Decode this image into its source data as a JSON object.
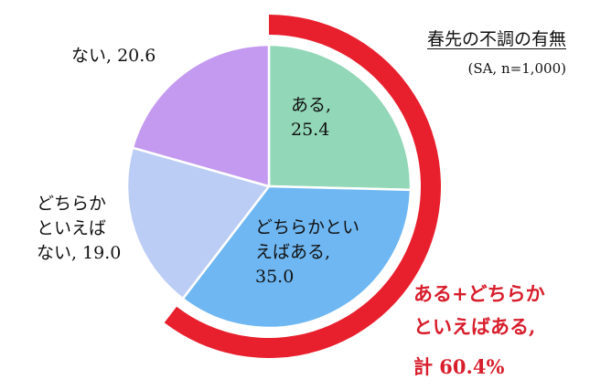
{
  "chart_data": {
    "type": "pie",
    "title": "春先の不調の有無",
    "subtitle": "(SA, n=1,000)",
    "slices": [
      {
        "label": "ある",
        "value": 25.4,
        "color": "#92d7b7"
      },
      {
        "label": "どちらかといえばある",
        "value": 35.0,
        "color": "#6fb7f2"
      },
      {
        "label": "どちらかといえばない",
        "value": 19.0,
        "color": "#bccdf5"
      },
      {
        "label": "ない",
        "value": 20.6,
        "color": "#c49af0"
      }
    ],
    "highlight": {
      "covers": [
        "ある",
        "どちらかといえばある"
      ],
      "total": 60.4,
      "color": "#e8202e",
      "text_lines": [
        "ある+どちらか",
        "といえばある,",
        "計 60.4%"
      ]
    },
    "labels": {
      "aru": [
        "ある,",
        "25.4"
      ],
      "dochira_aru": [
        "どちらかとい",
        "えばある,",
        "35.0"
      ],
      "dochira_nai": [
        "どちらか",
        "といえば",
        "ない, 19.0"
      ],
      "nai": "ない, 20.6"
    }
  }
}
